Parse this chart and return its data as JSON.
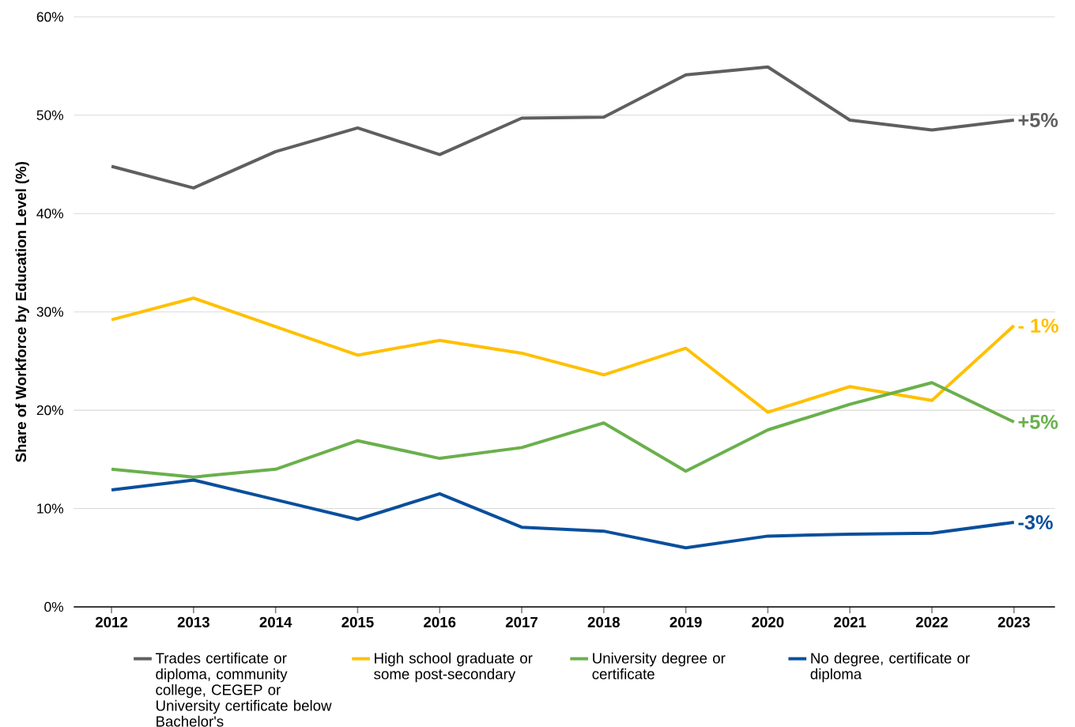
{
  "chart_data": {
    "type": "line",
    "ylabel": "Share of Workforce by Education Level (%)",
    "categories": [
      "2012",
      "2013",
      "2014",
      "2015",
      "2016",
      "2017",
      "2018",
      "2019",
      "2020",
      "2021",
      "2022",
      "2023"
    ],
    "series": [
      {
        "name": "Trades certificate or diploma, community college, CEGEP or University certificate below Bachelor's",
        "color": "#5f5f5f",
        "values": [
          44.8,
          42.6,
          46.3,
          48.7,
          46.0,
          49.7,
          49.8,
          54.1,
          54.9,
          49.5,
          48.5,
          49.5
        ]
      },
      {
        "name": "High school graduate or some post-secondary",
        "color": "#ffc000",
        "values": [
          29.2,
          31.4,
          28.5,
          25.6,
          27.1,
          25.8,
          23.6,
          26.3,
          19.8,
          22.4,
          21.0,
          28.6
        ]
      },
      {
        "name": "University degree or certificate",
        "color": "#6ab04c",
        "values": [
          14.0,
          13.2,
          14.0,
          16.9,
          15.1,
          16.2,
          18.7,
          13.8,
          18.0,
          20.6,
          22.8,
          18.8
        ]
      },
      {
        "name": "No degree, certificate or diploma",
        "color": "#0a4f9c",
        "values": [
          11.9,
          12.9,
          10.9,
          8.9,
          11.5,
          8.1,
          7.7,
          6.0,
          7.2,
          7.4,
          7.5,
          8.6
        ]
      }
    ],
    "annotations": [
      {
        "text": "+5%",
        "x": "2023",
        "y": 49.5
      },
      {
        "text": "- 1%",
        "x": "2023",
        "y": 28.6
      },
      {
        "text": "+5%",
        "x": "2023",
        "y": 18.8
      },
      {
        "text": "-3%",
        "x": "2023",
        "y": 8.6
      }
    ],
    "ylim": [
      0,
      60
    ],
    "yticks": [
      {
        "value": 0,
        "label": "0%"
      },
      {
        "value": 10,
        "label": "10%"
      },
      {
        "value": 20,
        "label": "20%"
      },
      {
        "value": 30,
        "label": "30%"
      },
      {
        "value": 40,
        "label": "40%"
      },
      {
        "value": 50,
        "label": "50%"
      },
      {
        "value": 60,
        "label": "60%"
      }
    ],
    "grid": "y",
    "legend": "bottom",
    "marker": "none",
    "line_style": "solid"
  }
}
